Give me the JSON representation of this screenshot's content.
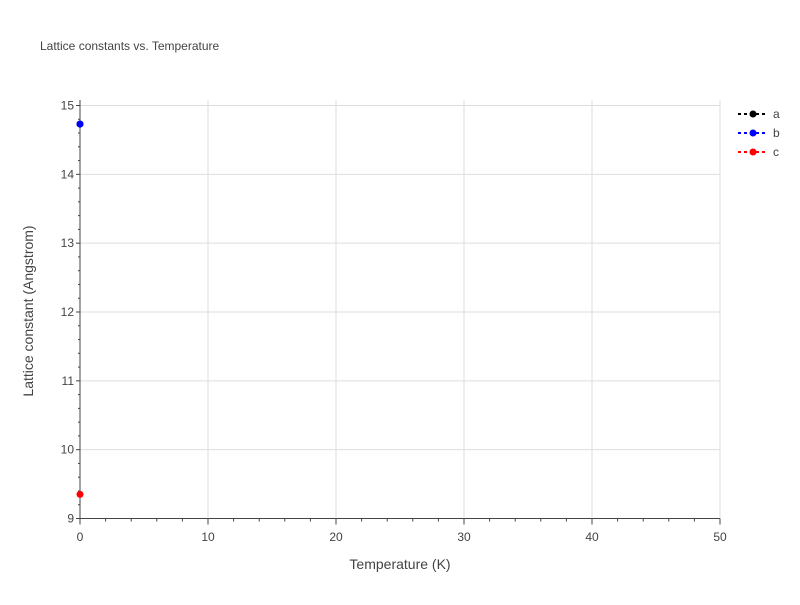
{
  "chart_data": {
    "type": "scatter",
    "title": "Lattice constants vs. Temperature",
    "xlabel": "Temperature (K)",
    "ylabel": "Lattice constant (Angstrom)",
    "xlim": [
      0,
      50
    ],
    "ylim": [
      9,
      15
    ],
    "xticks": [
      0,
      10,
      20,
      30,
      40,
      50
    ],
    "yticks": [
      9,
      10,
      11,
      12,
      13,
      14,
      15
    ],
    "grid": true,
    "legend_position": "top-right",
    "series": [
      {
        "name": "a",
        "color": "#000000",
        "x": [
          0
        ],
        "y": [
          14.73
        ]
      },
      {
        "name": "b",
        "color": "#0000ff",
        "x": [
          0
        ],
        "y": [
          14.73
        ]
      },
      {
        "name": "c",
        "color": "#ff0000",
        "x": [
          0
        ],
        "y": [
          9.35
        ]
      }
    ]
  }
}
